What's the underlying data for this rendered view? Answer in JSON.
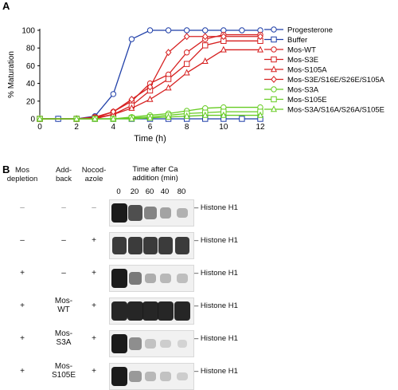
{
  "panel_a_letter": "A",
  "panel_b_letter": "B",
  "chart_data": {
    "type": "line",
    "xlabel": "Time (h)",
    "ylabel": "% Maturation",
    "xlim": [
      0,
      12
    ],
    "ylim": [
      0,
      100
    ],
    "xticks": [
      0,
      2,
      4,
      6,
      8,
      10,
      12
    ],
    "yticks": [
      0,
      20,
      40,
      60,
      80,
      100
    ],
    "grid": false,
    "legend_position": "right",
    "series": [
      {
        "name": "Progesterone",
        "color": "#1f3fa8",
        "marker": "circle",
        "x": [
          0,
          1,
          2,
          3,
          4,
          5,
          6,
          7,
          8,
          9,
          10,
          11,
          12
        ],
        "y": [
          0,
          0,
          0,
          3,
          28,
          90,
          100,
          100,
          100,
          100,
          100,
          100,
          100
        ]
      },
      {
        "name": "Buffer",
        "color": "#1f3fa8",
        "marker": "square",
        "x": [
          0,
          1,
          2,
          3,
          4,
          5,
          6,
          7,
          8,
          9,
          10,
          11,
          12
        ],
        "y": [
          0,
          0,
          0,
          0,
          0,
          0,
          0,
          0,
          0,
          0,
          0,
          0,
          0
        ]
      },
      {
        "name": "Mos-WT",
        "color": "#d62020",
        "marker": "circle",
        "x": [
          0,
          2,
          3,
          4,
          5,
          6,
          7,
          8,
          9,
          10,
          12
        ],
        "y": [
          0,
          0,
          2,
          8,
          20,
          40,
          50,
          75,
          90,
          95,
          95
        ]
      },
      {
        "name": "Mos-S3E",
        "color": "#d62020",
        "marker": "square",
        "x": [
          0,
          2,
          3,
          4,
          5,
          6,
          7,
          8,
          9,
          10,
          12
        ],
        "y": [
          0,
          0,
          1,
          5,
          15,
          32,
          45,
          62,
          83,
          88,
          88
        ]
      },
      {
        "name": "Mos-S105A",
        "color": "#d62020",
        "marker": "triangle",
        "x": [
          0,
          2,
          3,
          4,
          5,
          6,
          7,
          8,
          9,
          10,
          12
        ],
        "y": [
          0,
          0,
          0,
          5,
          12,
          22,
          35,
          52,
          65,
          78,
          78
        ]
      },
      {
        "name": "Mos-S3E/S16E/S26E/S105A",
        "color": "#d62020",
        "marker": "diamond",
        "x": [
          0,
          2,
          3,
          4,
          5,
          6,
          7,
          8,
          9,
          10,
          12
        ],
        "y": [
          0,
          0,
          1,
          8,
          22,
          36,
          75,
          93,
          93,
          93,
          93
        ]
      },
      {
        "name": "Mos-S3A",
        "color": "#66cc22",
        "marker": "circle",
        "x": [
          0,
          2,
          3,
          4,
          5,
          6,
          7,
          8,
          9,
          10,
          12
        ],
        "y": [
          0,
          0,
          0,
          0,
          2,
          4,
          6,
          9,
          12,
          13,
          13
        ]
      },
      {
        "name": "Mos-S105E",
        "color": "#66cc22",
        "marker": "square",
        "x": [
          0,
          2,
          3,
          4,
          5,
          6,
          7,
          8,
          9,
          10,
          12
        ],
        "y": [
          0,
          0,
          0,
          0,
          1,
          2,
          4,
          6,
          7,
          8,
          8
        ]
      },
      {
        "name": "Mos-S3A/S16A/S26A/S105E",
        "color": "#66cc22",
        "marker": "triangle",
        "x": [
          0,
          2,
          3,
          4,
          5,
          6,
          7,
          8,
          9,
          10,
          12
        ],
        "y": [
          0,
          0,
          0,
          0,
          0,
          1,
          2,
          3,
          4,
          4,
          4
        ]
      }
    ]
  },
  "blot": {
    "col_headers": {
      "depletion": "Mos\ndepletion",
      "addback": "Add-\nback",
      "nocodazole": "Nocod-\nazole",
      "time_title": "Time after Ca\naddition (min)"
    },
    "time_points": [
      "0",
      "20",
      "60",
      "40",
      "80"
    ],
    "band_label": "Histone H1",
    "rows": [
      {
        "depletion": "–",
        "addback": "–",
        "nocodazole": "–",
        "intensity": [
          1.0,
          0.75,
          0.5,
          0.35,
          0.28
        ]
      },
      {
        "depletion": "–",
        "addback": "–",
        "nocodazole": "+",
        "intensity": [
          0.85,
          0.85,
          0.85,
          0.85,
          0.85
        ]
      },
      {
        "depletion": "+",
        "addback": "–",
        "nocodazole": "+",
        "intensity": [
          1.0,
          0.55,
          0.3,
          0.25,
          0.22
        ]
      },
      {
        "depletion": "+",
        "addback": "Mos-\nWT",
        "nocodazole": "+",
        "intensity": [
          0.95,
          0.95,
          0.95,
          0.95,
          0.95
        ]
      },
      {
        "depletion": "+",
        "addback": "Mos-\nS3A",
        "nocodazole": "+",
        "intensity": [
          1.0,
          0.45,
          0.2,
          0.15,
          0.12
        ]
      },
      {
        "depletion": "+",
        "addback": "Mos-\nS105E",
        "nocodazole": "+",
        "intensity": [
          1.0,
          0.4,
          0.25,
          0.2,
          0.15
        ]
      }
    ]
  }
}
